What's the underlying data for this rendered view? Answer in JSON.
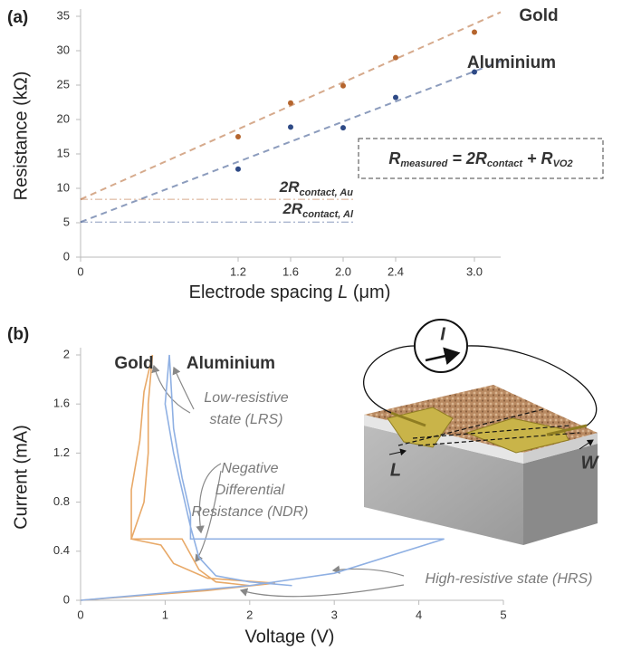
{
  "chart_data": [
    {
      "type": "scatter",
      "panel": "(a)",
      "xlabel": [
        "Electrode spacing ",
        "L",
        " (μm)"
      ],
      "ylabel": "Resistance (kΩ)",
      "x": [
        1.2,
        1.6,
        2.0,
        2.4,
        3.0
      ],
      "series": [
        {
          "name": "Gold",
          "color": "#b5652e",
          "values": [
            17.5,
            22.4,
            24.9,
            29.0,
            32.7
          ],
          "fit": {
            "intercept": 8.4,
            "slope": 8.5
          },
          "contact_label": [
            "2R",
            "contact, Au"
          ]
        },
        {
          "name": "Aluminium",
          "color": "#2e4a86",
          "values": [
            12.8,
            18.9,
            18.8,
            23.2,
            26.9
          ],
          "fit": {
            "intercept": 5.1,
            "slope": 7.3
          },
          "contact_label": [
            "2R",
            "contact, Al"
          ]
        }
      ],
      "formula": [
        "R",
        "measured",
        " = 2R",
        "contact",
        " + R",
        "VO2"
      ],
      "xlim": [
        0,
        3.2
      ],
      "ylim": [
        0,
        35
      ],
      "xticks": [
        0,
        1.2,
        1.6,
        {
          "value": 2,
          "label": "2.0"
        },
        2.4,
        {
          "value": 3,
          "label": "3.0"
        }
      ],
      "yticks": [
        0,
        5,
        10,
        15,
        20,
        25,
        30,
        35
      ]
    },
    {
      "type": "line",
      "panel": "(b)",
      "xlabel": "Voltage (V)",
      "ylabel": "Current (mA)",
      "series": [
        {
          "name": "Gold",
          "color": "#e8a968",
          "label_color": "#b5652e",
          "x": [
            0,
            1.5,
            2.3,
            1.5,
            1.1,
            0.95,
            0.6,
            0.6,
            0.7,
            0.75,
            0.85,
            0.8,
            0.8,
            0.75,
            0.6,
            1.2,
            1.4,
            1.6,
            2.0
          ],
          "values": [
            0,
            0.08,
            0.14,
            0.18,
            0.3,
            0.45,
            0.5,
            0.9,
            1.3,
            1.7,
            2.0,
            1.6,
            1.2,
            0.8,
            0.5,
            0.5,
            0.25,
            0.15,
            0.12
          ]
        },
        {
          "name": "Aluminium",
          "color": "#8fb0e3",
          "label_color": "#3a5a9a",
          "x": [
            0,
            2.0,
            3.0,
            4.3,
            1.3,
            1.3,
            1.2,
            1.1,
            1.05,
            1.0,
            1.1,
            1.2,
            1.3,
            1.4,
            1.6,
            2.0,
            2.5
          ],
          "values": [
            0,
            0.12,
            0.22,
            0.5,
            0.5,
            0.7,
            1.0,
            1.4,
            2.0,
            1.6,
            1.2,
            0.9,
            0.6,
            0.35,
            0.2,
            0.15,
            0.12
          ]
        }
      ],
      "annotations": [
        {
          "lines": [
            "Low-resistive",
            "state (LRS)"
          ]
        },
        {
          "lines": [
            "Negative",
            "Differential",
            "Resistance (NDR)"
          ]
        },
        {
          "lines": [
            "High-resistive state (HRS)"
          ]
        }
      ],
      "device_labels": {
        "current": "I",
        "length": "L",
        "width": "W"
      },
      "xlim": [
        0,
        5
      ],
      "ylim": [
        0,
        2
      ],
      "xticks": [
        0,
        1,
        2,
        3,
        4,
        5
      ],
      "yticks": [
        0,
        0.4,
        0.8,
        1.2,
        1.6,
        2
      ]
    }
  ]
}
